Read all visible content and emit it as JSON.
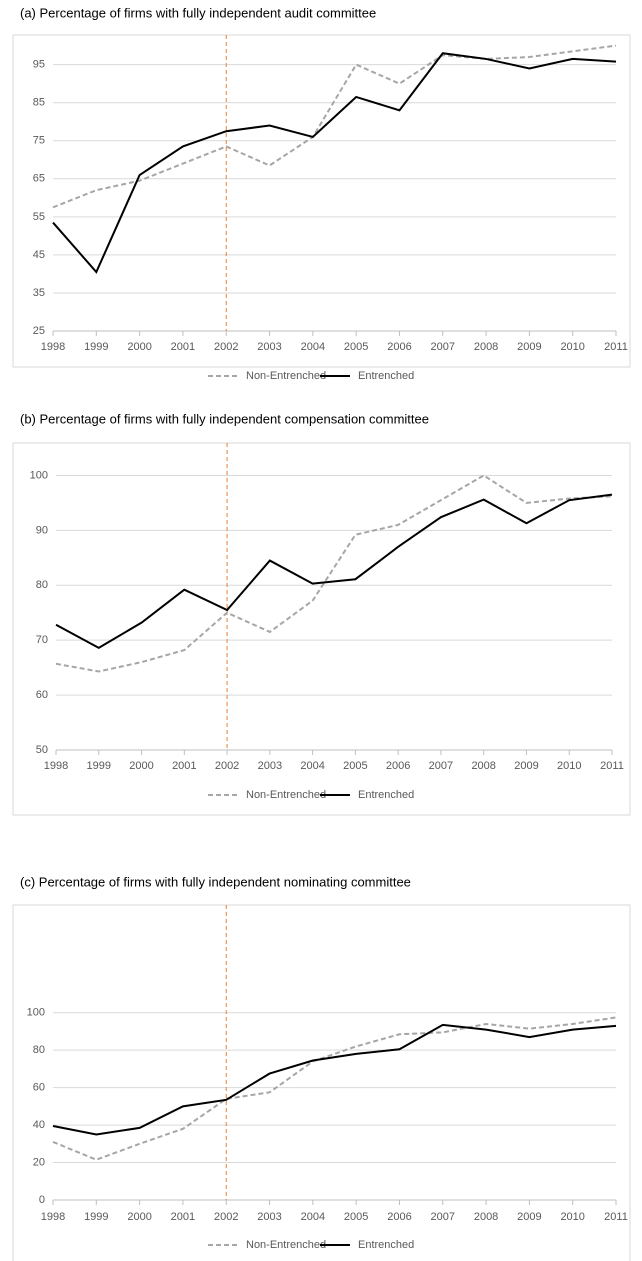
{
  "chart_data": [
    {
      "type": "line",
      "title": "(a)  Percentage of firms with fully independent audit committee",
      "categories": [
        "1998",
        "1999",
        "2000",
        "2001",
        "2002",
        "2003",
        "2004",
        "2005",
        "2006",
        "2007",
        "2008",
        "2009",
        "2010",
        "2011"
      ],
      "series": [
        {
          "name": "Non-Entrenched",
          "color": "#a6a6a6",
          "style": "dashed",
          "values": [
            57.5,
            62,
            64.5,
            69,
            73.5,
            68.5,
            76,
            95,
            90,
            97.5,
            96.5,
            97,
            98.5,
            100
          ]
        },
        {
          "name": "Entrenched",
          "color": "#000000",
          "style": "solid",
          "values": [
            53.5,
            40.5,
            66,
            73.5,
            77.5,
            79,
            76,
            86.5,
            83,
            98,
            96.5,
            94,
            96.5,
            95.8
          ]
        }
      ],
      "ylim": [
        25,
        102
      ],
      "yticks": [
        25,
        35,
        45,
        55,
        65,
        75,
        85,
        95
      ],
      "grid": true,
      "reference_line": {
        "x": "2002",
        "color": "#ed7d31"
      },
      "legend": "bottom"
    },
    {
      "type": "line",
      "title": "(b)  Percentage of firms with fully independent compensation committee",
      "categories": [
        "1998",
        "1999",
        "2000",
        "2001",
        "2002",
        "2003",
        "2004",
        "2005",
        "2006",
        "2007",
        "2008",
        "2009",
        "2010",
        "2011"
      ],
      "series": [
        {
          "name": "Non-Entrenched",
          "color": "#a6a6a6",
          "style": "dashed",
          "values": [
            65.7,
            64.3,
            66,
            68.2,
            75,
            71.5,
            77.2,
            89.2,
            91,
            95.5,
            100,
            95,
            95.8,
            96.2
          ]
        },
        {
          "name": "Entrenched",
          "color": "#000000",
          "style": "solid",
          "values": [
            72.8,
            68.6,
            73.2,
            79.2,
            75.5,
            84.5,
            80.3,
            81.1,
            87,
            92.4,
            95.6,
            91.3,
            95.5,
            96.5
          ]
        }
      ],
      "ylim": [
        50,
        105
      ],
      "yticks": [
        50,
        60,
        70,
        80,
        90,
        100
      ],
      "grid": true,
      "reference_line": {
        "x": "2002",
        "color": "#ed7d31"
      },
      "legend": "bottom"
    },
    {
      "type": "line",
      "title": "(c)  Percentage of firms with fully independent nominating committee",
      "categories": [
        "1998",
        "1999",
        "2000",
        "2001",
        "2002",
        "2003",
        "2004",
        "2005",
        "2006",
        "2007",
        "2008",
        "2009",
        "2010",
        "2011"
      ],
      "series": [
        {
          "name": "Non-Entrenched",
          "color": "#a6a6a6",
          "style": "dashed",
          "values": [
            31,
            21.5,
            30,
            38,
            54,
            57.5,
            74,
            82,
            88.5,
            89.5,
            94,
            91.5,
            94,
            97.5
          ]
        },
        {
          "name": "Entrenched",
          "color": "#000000",
          "style": "solid",
          "values": [
            39.5,
            35,
            38.5,
            50,
            53.5,
            67.5,
            74.5,
            78,
            80.5,
            93.5,
            91,
            87,
            91,
            93
          ]
        }
      ],
      "ylim": [
        0,
        110
      ],
      "yticks": [
        0,
        20,
        40,
        60,
        80,
        100
      ],
      "grid": true,
      "reference_line": {
        "x": "2002",
        "color": "#ed7d31"
      },
      "legend": "bottom"
    }
  ]
}
